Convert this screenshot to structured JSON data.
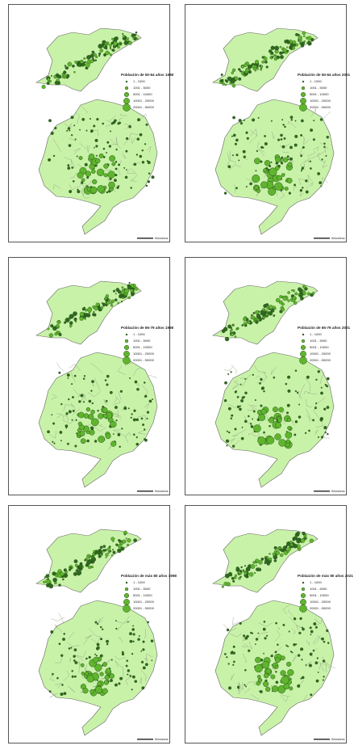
{
  "panels": [
    {
      "legend": {
        "title": "Población de 50-64 años 1998",
        "items": [
          "1 - 1000",
          "1001 - 5000",
          "5001 - 10000",
          "10001 - 20000",
          "20001 - 50000"
        ]
      },
      "scale_label": "Kilómetros"
    },
    {
      "legend": {
        "title": "Población de 50-64 años 2021",
        "items": [
          "1 - 1000",
          "1001 - 5000",
          "5001 - 10000",
          "10001 - 20000",
          "20001 - 50000"
        ]
      },
      "scale_label": "Kilómetros"
    },
    {
      "legend": {
        "title": "Población de 65-79 años 1998",
        "items": [
          "1 - 1000",
          "1001 - 5000",
          "5001 - 10000",
          "10001 - 20000",
          "20001 - 50000"
        ]
      },
      "scale_label": "Kilómetros"
    },
    {
      "legend": {
        "title": "Población de 65-79 años 2021",
        "items": [
          "1 - 1000",
          "1001 - 5000",
          "5001 - 10000",
          "10001 - 20000",
          "20001 - 50000"
        ]
      },
      "scale_label": "Kilómetros"
    },
    {
      "legend": {
        "title": "Población de más 80 años 1998",
        "items": [
          "1 - 1000",
          "1001 - 5000",
          "5001 - 10000",
          "10001 - 20000",
          "20001 - 50000"
        ]
      },
      "scale_label": "Kilómetros"
    },
    {
      "legend": {
        "title": "Población de más 80 años 2021",
        "items": [
          "1 - 1000",
          "1001 - 5000",
          "5001 - 10000",
          "10001 - 20000",
          "20001 - 50000"
        ]
      },
      "scale_label": "Kilómetros"
    }
  ]
}
